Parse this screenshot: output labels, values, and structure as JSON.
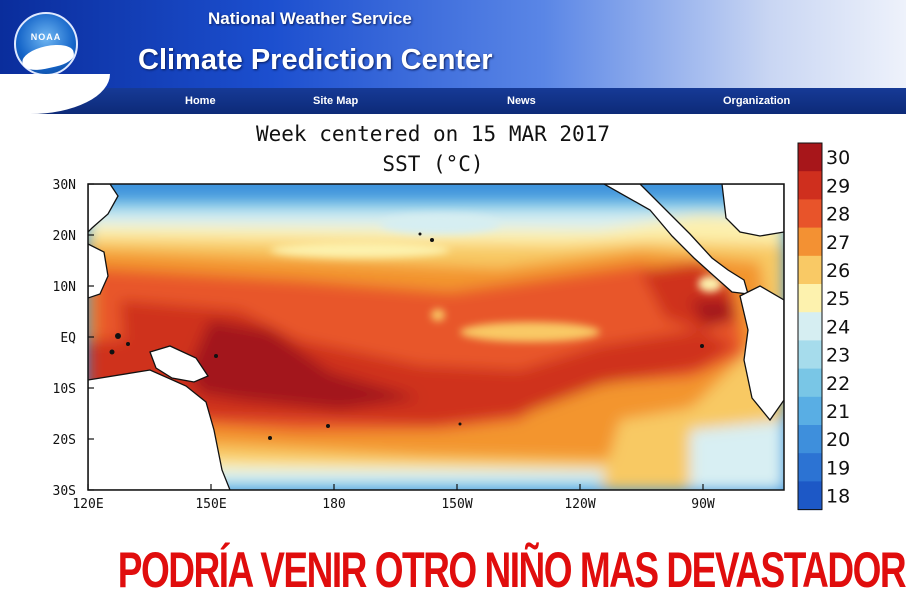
{
  "header": {
    "logo_text": "NOAA",
    "agency": "National Weather Service",
    "center": "Climate Prediction Center",
    "nav": [
      "Home",
      "Site Map",
      "News",
      "Organization"
    ]
  },
  "map": {
    "title_line1": "Week centered on 15 MAR 2017",
    "title_line2": "SST (°C)",
    "lat_labels": [
      "30N",
      "20N",
      "10N",
      "EQ",
      "10S",
      "20S",
      "30S"
    ],
    "lon_labels": [
      "120E",
      "150E",
      "180",
      "150W",
      "120W",
      "90W"
    ],
    "colorbar_labels": [
      "30",
      "29",
      "28",
      "27",
      "26",
      "25",
      "24",
      "23",
      "22",
      "21",
      "20",
      "19",
      "18"
    ],
    "colorbar_colors": [
      "#a7161a",
      "#cf2f1e",
      "#e8542a",
      "#f39133",
      "#f9c965",
      "#fdf2ae",
      "#d6eef2",
      "#a6dcec",
      "#79c6e6",
      "#59aee4",
      "#3e8fdc",
      "#2c73d3",
      "#1d58c6"
    ]
  },
  "headline": "PODRÍA VENIR OTRO NIÑO MAS DEVASTADOR!!!"
}
